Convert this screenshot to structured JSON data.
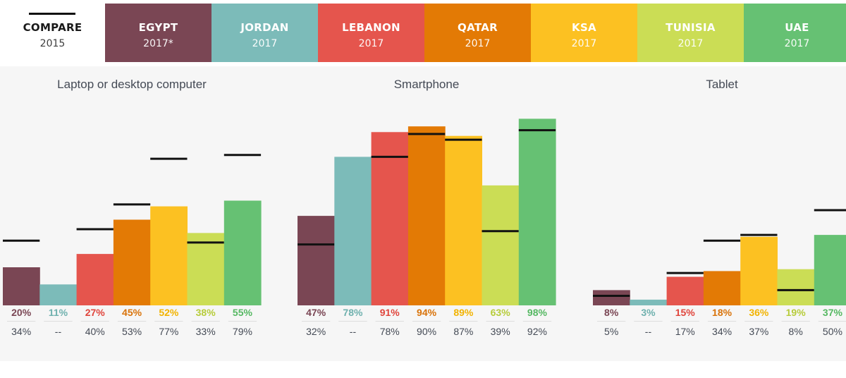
{
  "header": {
    "tabs": [
      {
        "name": "COMPARE",
        "year": "2015",
        "color": "#ffffff"
      },
      {
        "name": "EGYPT",
        "year": "2017*",
        "color": "#7a4654"
      },
      {
        "name": "JORDAN",
        "year": "2017",
        "color": "#7cbbb9"
      },
      {
        "name": "LEBANON",
        "year": "2017",
        "color": "#e5554d"
      },
      {
        "name": "QATAR",
        "year": "2017",
        "color": "#e37a05"
      },
      {
        "name": "KSA",
        "year": "2017",
        "color": "#fcc122"
      },
      {
        "name": "TUNISIA",
        "year": "2017",
        "color": "#cbdd55"
      },
      {
        "name": "UAE",
        "year": "2017",
        "color": "#66c173"
      }
    ]
  },
  "chart_data": {
    "type": "bar",
    "categories": [
      "Egypt",
      "Jordan",
      "Lebanon",
      "Qatar",
      "KSA",
      "Tunisia",
      "UAE"
    ],
    "colors": [
      "#7a4654",
      "#7cbbb9",
      "#e5554d",
      "#e37a05",
      "#fcc122",
      "#cbdd55",
      "#66c173"
    ],
    "label_colors": [
      "#7a4654",
      "#6fb1ae",
      "#e0453c",
      "#d9730a",
      "#f2b300",
      "#b7cc3a",
      "#55b862"
    ],
    "ylim": [
      0,
      100
    ],
    "groups": [
      {
        "title": "Laptop or desktop computer",
        "values_2017": [
          20,
          11,
          27,
          45,
          52,
          38,
          55
        ],
        "values_2015": [
          34,
          null,
          40,
          53,
          77,
          33,
          79
        ],
        "labels_2017": [
          "20%",
          "11%",
          "27%",
          "45%",
          "52%",
          "38%",
          "55%"
        ],
        "labels_2015": [
          "34%",
          "--",
          "40%",
          "53%",
          "77%",
          "33%",
          "79%"
        ]
      },
      {
        "title": "Smartphone",
        "values_2017": [
          47,
          78,
          91,
          94,
          89,
          63,
          98
        ],
        "values_2015": [
          32,
          null,
          78,
          90,
          87,
          39,
          92
        ],
        "labels_2017": [
          "47%",
          "78%",
          "91%",
          "94%",
          "89%",
          "63%",
          "98%"
        ],
        "labels_2015": [
          "32%",
          "--",
          "78%",
          "90%",
          "87%",
          "39%",
          "92%"
        ]
      },
      {
        "title": "Tablet",
        "values_2017": [
          8,
          3,
          15,
          18,
          36,
          19,
          37
        ],
        "values_2015": [
          5,
          null,
          17,
          34,
          37,
          8,
          50
        ],
        "labels_2017": [
          "8%",
          "3%",
          "15%",
          "18%",
          "36%",
          "19%",
          "37%"
        ],
        "labels_2015": [
          "5%",
          "--",
          "17%",
          "34%",
          "37%",
          "8%",
          "50%"
        ]
      }
    ]
  }
}
